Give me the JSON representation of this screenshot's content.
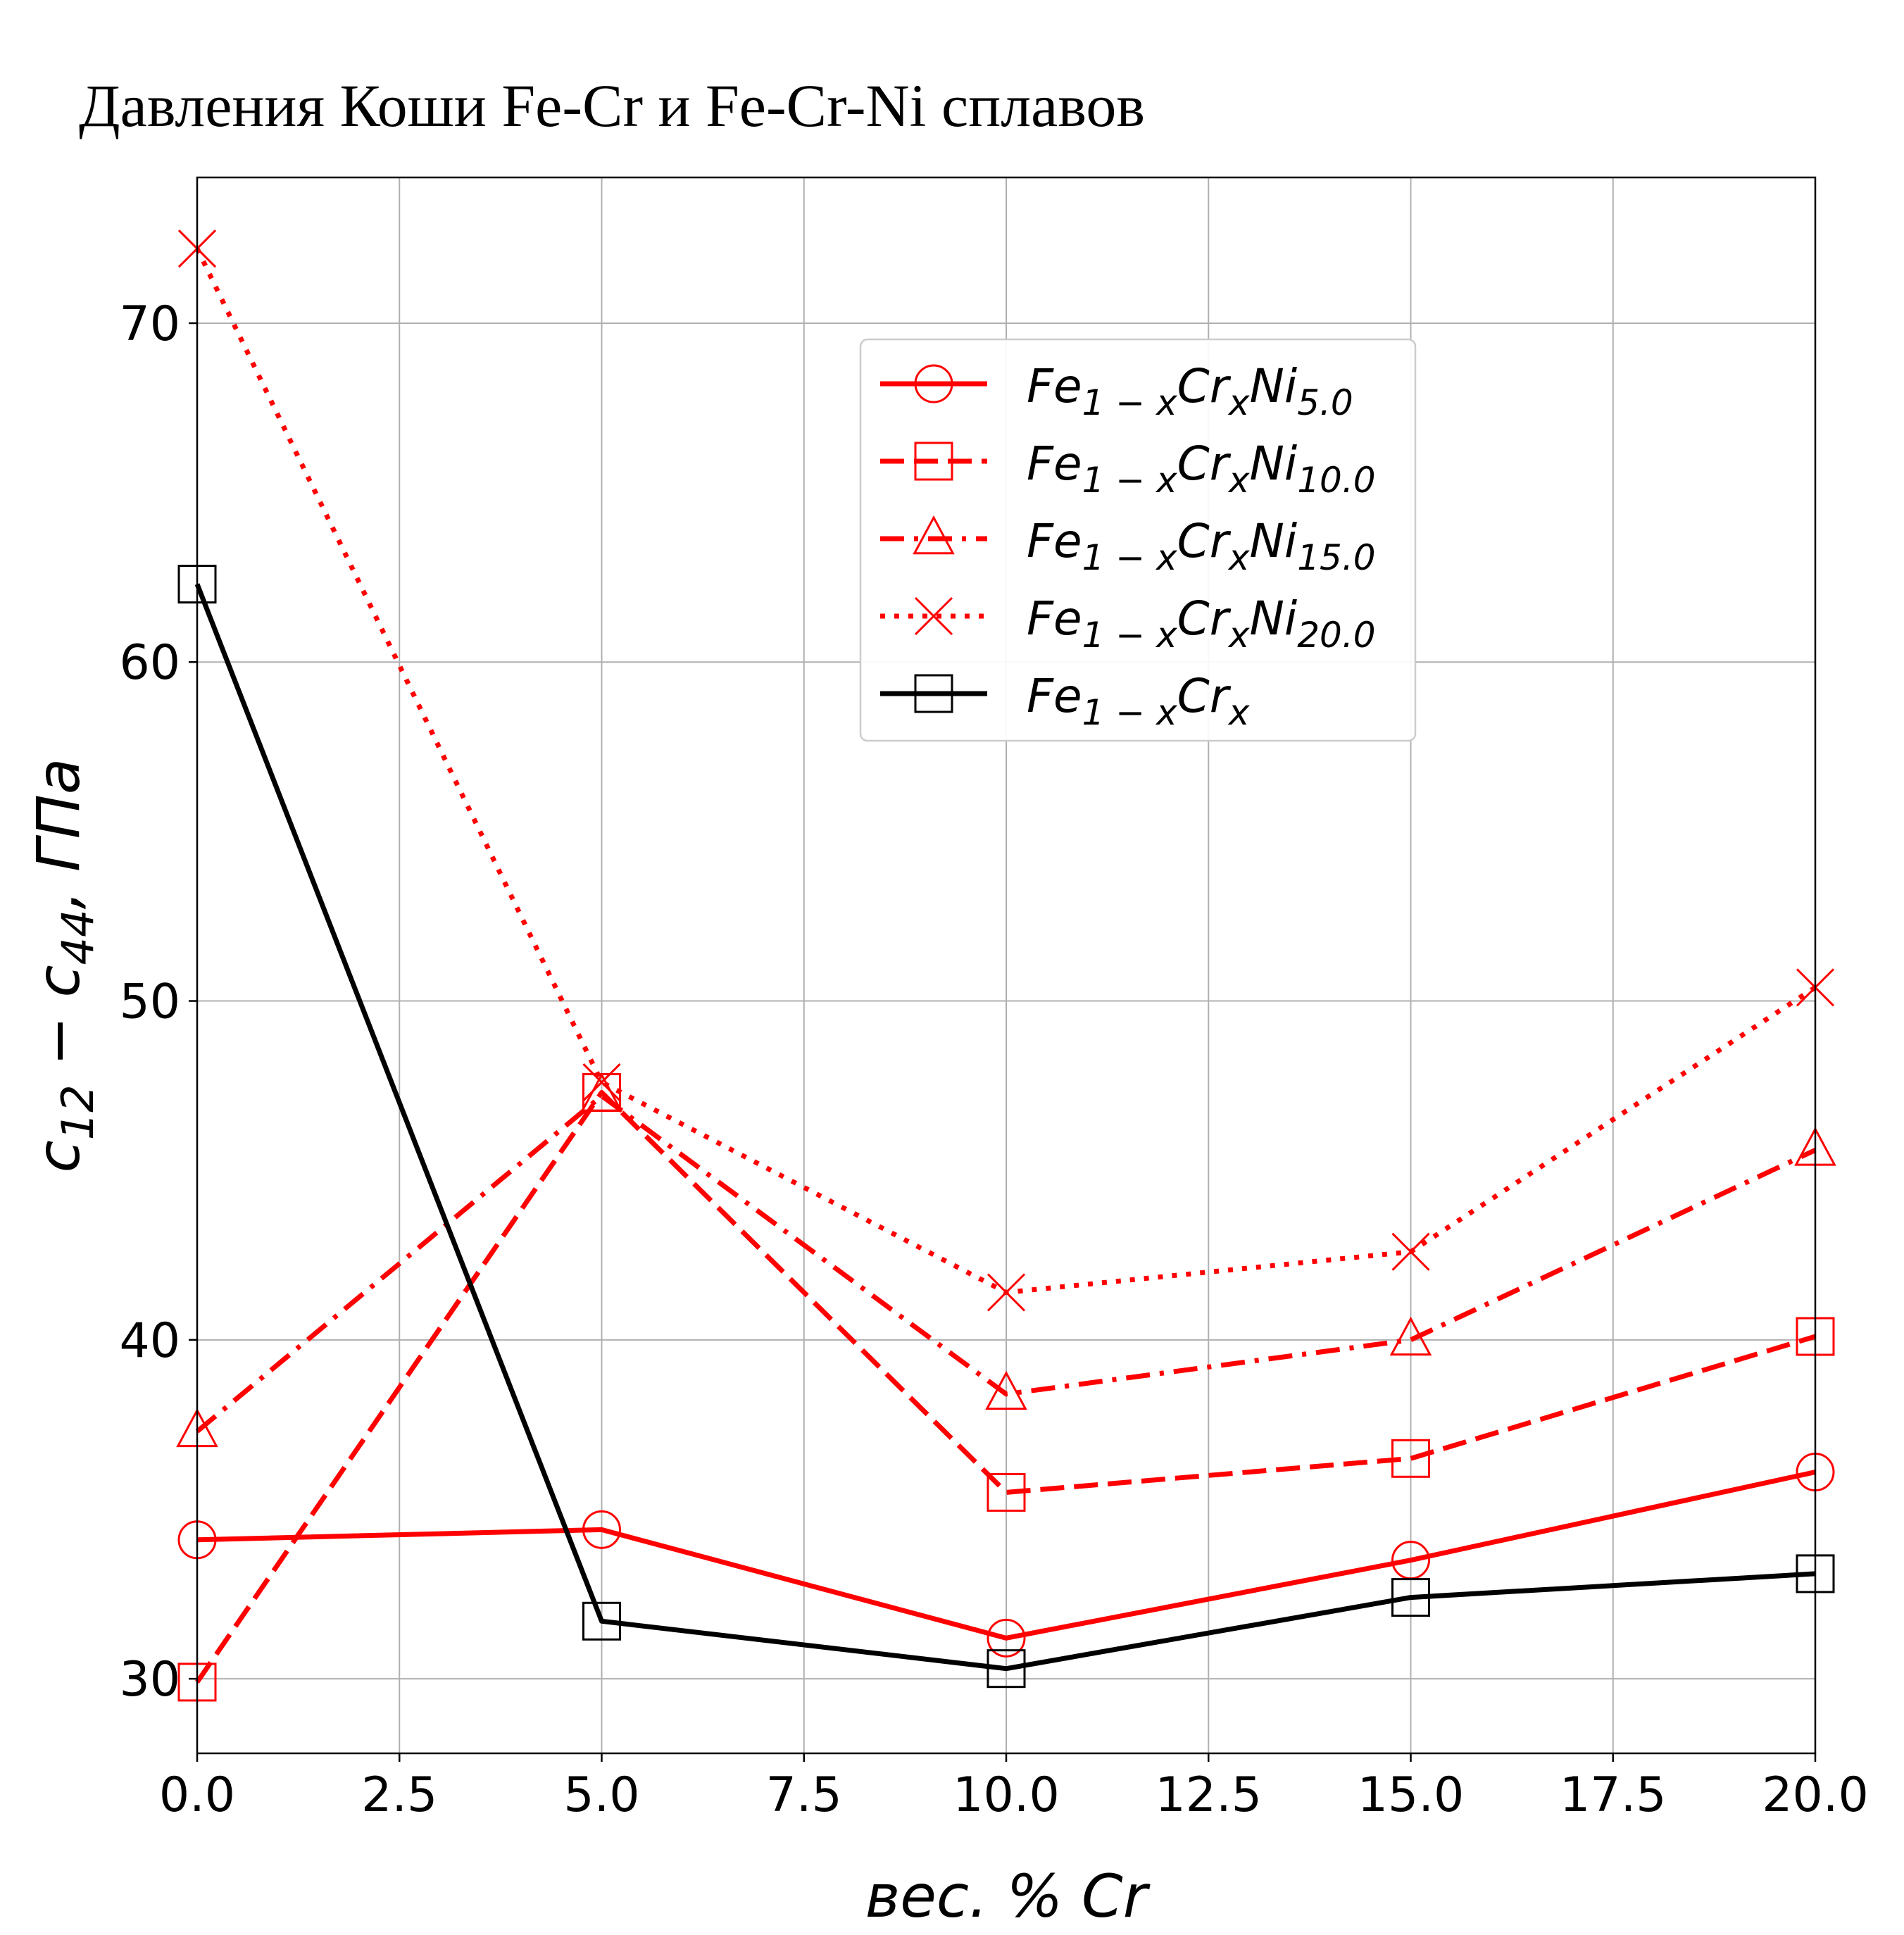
{
  "chart_data": {
    "type": "line",
    "title": "Давления Коши Fe-Cr и Fe-Cr-Ni сплавов",
    "xlabel": "вес. % Cr",
    "ylabel": "c12 − c44,  ГПа",
    "xlim": [
      0,
      20
    ],
    "ylim": [
      27.8,
      74.3
    ],
    "xticks": [
      "0.0",
      "2.5",
      "5.0",
      "7.5",
      "10.0",
      "12.5",
      "15.0",
      "17.5",
      "20.0"
    ],
    "yticks": [
      "30",
      "40",
      "50",
      "60",
      "70"
    ],
    "grid": true,
    "legend_position": "upper center",
    "x": [
      0,
      5,
      10,
      15,
      20
    ],
    "series": [
      {
        "name": "Fe1−xCrxNi5.0",
        "legend": {
          "base": "Fe",
          "s1": "1 − x",
          "m": "Cr",
          "s2": "x",
          "n": "Ni",
          "s3": "5.0"
        },
        "values": [
          34.1,
          34.4,
          31.2,
          33.5,
          36.1
        ],
        "color": "#ff0000",
        "line": "solid",
        "marker": "circle"
      },
      {
        "name": "Fe1−xCrxNi10.0",
        "legend": {
          "base": "Fe",
          "s1": "1 − x",
          "m": "Cr",
          "s2": "x",
          "n": "Ni",
          "s3": "10.0"
        },
        "values": [
          29.9,
          47.3,
          35.5,
          36.5,
          40.1
        ],
        "color": "#ff0000",
        "line": "dashed",
        "marker": "square"
      },
      {
        "name": "Fe1−xCrxNi15.0",
        "legend": {
          "base": "Fe",
          "s1": "1 − x",
          "m": "Cr",
          "s2": "x",
          "n": "Ni",
          "s3": "15.0"
        },
        "values": [
          37.3,
          47.2,
          38.4,
          40.0,
          45.6
        ],
        "color": "#ff0000",
        "line": "dashdot",
        "marker": "triangle"
      },
      {
        "name": "Fe1−xCrxNi20.0",
        "legend": {
          "base": "Fe",
          "s1": "1 − x",
          "m": "Cr",
          "s2": "x",
          "n": "Ni",
          "s3": "20.0"
        },
        "values": [
          72.2,
          47.6,
          41.4,
          42.6,
          50.4
        ],
        "color": "#ff0000",
        "line": "dotted",
        "marker": "x"
      },
      {
        "name": "Fe1−xCrx",
        "legend": {
          "base": "Fe",
          "s1": "1 − x",
          "m": "Cr",
          "s2": "x",
          "n": "",
          "s3": ""
        },
        "values": [
          62.3,
          31.7,
          30.3,
          32.4,
          33.1
        ],
        "color": "#000000",
        "line": "solid",
        "marker": "square"
      }
    ]
  }
}
